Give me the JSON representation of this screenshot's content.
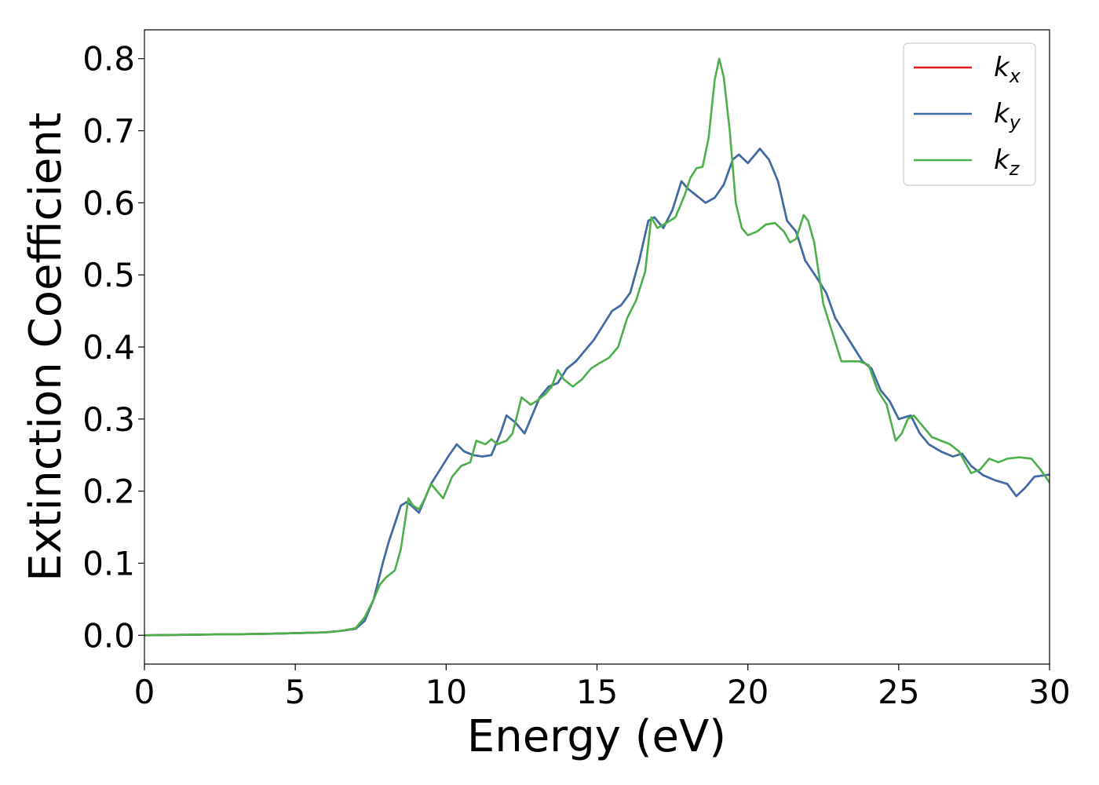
{
  "chart_data": {
    "type": "line",
    "title": "",
    "xlabel": "Energy (eV)",
    "ylabel": "Extinction Coefficient",
    "xlim": [
      0,
      30
    ],
    "ylim": [
      -0.04,
      0.84
    ],
    "xticks": [
      0,
      5,
      10,
      15,
      20,
      25,
      30
    ],
    "yticks": [
      0.0,
      0.1,
      0.2,
      0.3,
      0.4,
      0.5,
      0.6,
      0.7,
      0.8
    ],
    "xtick_labels": [
      "0",
      "5",
      "10",
      "15",
      "20",
      "25",
      "30"
    ],
    "ytick_labels": [
      "0.0",
      "0.1",
      "0.2",
      "0.3",
      "0.4",
      "0.5",
      "0.6",
      "0.7",
      "0.8"
    ],
    "grid": false,
    "legend_position": "top-right",
    "series": [
      {
        "name": "k",
        "subscript": "x",
        "color": "#e41a1c",
        "x": [
          0,
          1,
          2,
          3,
          4,
          5,
          6,
          6.5,
          7,
          7.3,
          7.6,
          7.9,
          8.1,
          8.3,
          8.5,
          8.7,
          8.9,
          9.1,
          9.3,
          9.5,
          9.8,
          10.1,
          10.35,
          10.6,
          10.9,
          11.2,
          11.5,
          11.8,
          12.0,
          12.3,
          12.6,
          12.8,
          13.1,
          13.4,
          13.7,
          14.0,
          14.3,
          14.6,
          14.9,
          15.2,
          15.5,
          15.8,
          16.1,
          16.4,
          16.7,
          16.9,
          17.2,
          17.5,
          17.8,
          18.0,
          18.3,
          18.6,
          18.9,
          19.2,
          19.5,
          19.7,
          20.0,
          20.4,
          20.7,
          21.0,
          21.3,
          21.6,
          21.9,
          22.3,
          22.6,
          22.9,
          23.2,
          23.5,
          23.8,
          24.1,
          24.4,
          24.7,
          25.0,
          25.4,
          25.7,
          26.0,
          26.4,
          26.8,
          27.1,
          27.4,
          27.8,
          28.2,
          28.6,
          28.9,
          29.2,
          29.5,
          30.0
        ],
        "y": [
          0.0,
          0.0005,
          0.001,
          0.0015,
          0.002,
          0.003,
          0.004,
          0.006,
          0.009,
          0.02,
          0.05,
          0.1,
          0.13,
          0.155,
          0.18,
          0.185,
          0.178,
          0.17,
          0.19,
          0.21,
          0.23,
          0.25,
          0.265,
          0.255,
          0.25,
          0.248,
          0.25,
          0.28,
          0.305,
          0.295,
          0.28,
          0.3,
          0.33,
          0.345,
          0.35,
          0.37,
          0.38,
          0.395,
          0.41,
          0.43,
          0.45,
          0.458,
          0.475,
          0.52,
          0.575,
          0.58,
          0.565,
          0.59,
          0.63,
          0.62,
          0.61,
          0.6,
          0.607,
          0.625,
          0.66,
          0.667,
          0.655,
          0.675,
          0.66,
          0.63,
          0.575,
          0.56,
          0.52,
          0.495,
          0.475,
          0.44,
          0.42,
          0.4,
          0.38,
          0.37,
          0.34,
          0.325,
          0.3,
          0.305,
          0.28,
          0.265,
          0.255,
          0.248,
          0.252,
          0.235,
          0.222,
          0.215,
          0.21,
          0.193,
          0.205,
          0.22,
          0.223
        ]
      },
      {
        "name": "k",
        "subscript": "y",
        "color": "#3a6fa8",
        "x": [
          0,
          1,
          2,
          3,
          4,
          5,
          6,
          6.5,
          7,
          7.3,
          7.6,
          7.9,
          8.1,
          8.3,
          8.5,
          8.7,
          8.9,
          9.1,
          9.3,
          9.5,
          9.8,
          10.1,
          10.35,
          10.6,
          10.9,
          11.2,
          11.5,
          11.8,
          12.0,
          12.3,
          12.6,
          12.8,
          13.1,
          13.4,
          13.7,
          14.0,
          14.3,
          14.6,
          14.9,
          15.2,
          15.5,
          15.8,
          16.1,
          16.4,
          16.7,
          16.9,
          17.2,
          17.5,
          17.8,
          18.0,
          18.3,
          18.6,
          18.9,
          19.2,
          19.5,
          19.7,
          20.0,
          20.4,
          20.7,
          21.0,
          21.3,
          21.6,
          21.9,
          22.3,
          22.6,
          22.9,
          23.2,
          23.5,
          23.8,
          24.1,
          24.4,
          24.7,
          25.0,
          25.4,
          25.7,
          26.0,
          26.4,
          26.8,
          27.1,
          27.4,
          27.8,
          28.2,
          28.6,
          28.9,
          29.2,
          29.5,
          30.0
        ],
        "y": [
          0.0,
          0.0005,
          0.001,
          0.0015,
          0.002,
          0.003,
          0.004,
          0.006,
          0.009,
          0.02,
          0.05,
          0.1,
          0.13,
          0.155,
          0.18,
          0.185,
          0.178,
          0.17,
          0.19,
          0.21,
          0.23,
          0.25,
          0.265,
          0.255,
          0.25,
          0.248,
          0.25,
          0.28,
          0.305,
          0.295,
          0.28,
          0.3,
          0.33,
          0.345,
          0.35,
          0.37,
          0.38,
          0.395,
          0.41,
          0.43,
          0.45,
          0.458,
          0.475,
          0.52,
          0.575,
          0.58,
          0.565,
          0.59,
          0.63,
          0.62,
          0.61,
          0.6,
          0.607,
          0.625,
          0.66,
          0.667,
          0.655,
          0.675,
          0.66,
          0.63,
          0.575,
          0.56,
          0.52,
          0.495,
          0.475,
          0.44,
          0.42,
          0.4,
          0.38,
          0.37,
          0.34,
          0.325,
          0.3,
          0.305,
          0.28,
          0.265,
          0.255,
          0.248,
          0.252,
          0.235,
          0.222,
          0.215,
          0.21,
          0.193,
          0.205,
          0.22,
          0.223
        ]
      },
      {
        "name": "k",
        "subscript": "z",
        "color": "#4daf4a",
        "x": [
          0,
          1,
          2,
          3,
          4,
          5,
          6,
          6.5,
          7,
          7.3,
          7.6,
          7.8,
          8.0,
          8.3,
          8.5,
          8.75,
          8.9,
          9.1,
          9.3,
          9.5,
          9.7,
          9.9,
          10.2,
          10.5,
          10.8,
          11.0,
          11.3,
          11.5,
          11.7,
          12.0,
          12.2,
          12.5,
          12.8,
          13.0,
          13.3,
          13.5,
          13.7,
          13.9,
          14.2,
          14.5,
          14.8,
          15.1,
          15.4,
          15.7,
          16.0,
          16.3,
          16.6,
          16.8,
          17.0,
          17.3,
          17.6,
          17.9,
          18.1,
          18.3,
          18.5,
          18.7,
          18.9,
          19.05,
          19.2,
          19.4,
          19.6,
          19.8,
          20.0,
          20.3,
          20.6,
          20.9,
          21.2,
          21.4,
          21.6,
          21.85,
          22.0,
          22.2,
          22.5,
          22.8,
          23.1,
          23.4,
          23.7,
          24.0,
          24.3,
          24.6,
          24.9,
          25.1,
          25.3,
          25.5,
          25.8,
          26.1,
          26.4,
          26.7,
          27.0,
          27.4,
          27.7,
          28.0,
          28.3,
          28.6,
          29.0,
          29.4,
          29.7,
          30.0
        ],
        "y": [
          0.0,
          0.0005,
          0.001,
          0.0015,
          0.002,
          0.003,
          0.004,
          0.006,
          0.01,
          0.025,
          0.05,
          0.07,
          0.08,
          0.09,
          0.12,
          0.19,
          0.18,
          0.175,
          0.19,
          0.21,
          0.2,
          0.19,
          0.22,
          0.235,
          0.24,
          0.27,
          0.265,
          0.272,
          0.265,
          0.27,
          0.28,
          0.33,
          0.32,
          0.325,
          0.335,
          0.345,
          0.368,
          0.355,
          0.345,
          0.355,
          0.37,
          0.378,
          0.385,
          0.4,
          0.44,
          0.465,
          0.505,
          0.58,
          0.565,
          0.572,
          0.58,
          0.61,
          0.635,
          0.648,
          0.65,
          0.69,
          0.77,
          0.8,
          0.775,
          0.7,
          0.6,
          0.565,
          0.555,
          0.56,
          0.57,
          0.572,
          0.56,
          0.545,
          0.55,
          0.583,
          0.575,
          0.545,
          0.46,
          0.42,
          0.38,
          0.38,
          0.38,
          0.375,
          0.34,
          0.32,
          0.27,
          0.28,
          0.3,
          0.305,
          0.29,
          0.275,
          0.27,
          0.265,
          0.255,
          0.225,
          0.23,
          0.245,
          0.24,
          0.245,
          0.247,
          0.245,
          0.23,
          0.212
        ]
      }
    ]
  }
}
